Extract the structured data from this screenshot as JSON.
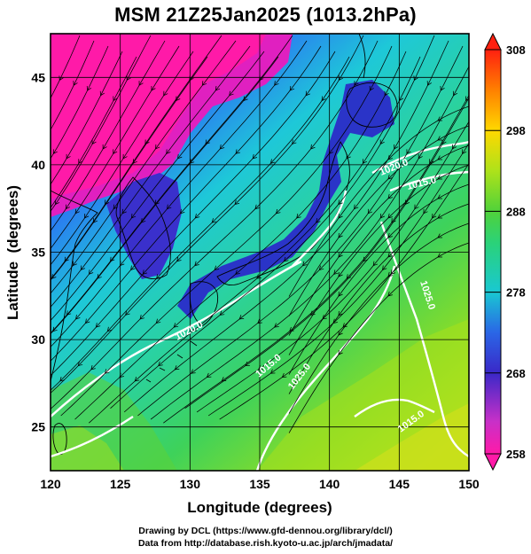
{
  "title": "MSM 21Z25Jan2025 (1013.2hPa)",
  "xlabel": "Longitude (degrees)",
  "ylabel": "Latitude  (degrees)",
  "x_ticks": [
    "120",
    "125",
    "130",
    "135",
    "140",
    "145",
    "150"
  ],
  "y_ticks": [
    "25",
    "30",
    "35",
    "40",
    "45"
  ],
  "colorbar_ticks": [
    "258",
    "268",
    "278",
    "288",
    "298",
    "308"
  ],
  "contour_labels": [
    "1020.0",
    "1015.0",
    "1025.0",
    "1020.0",
    "1015.0",
    "1025.0",
    "1015.0"
  ],
  "credit_line1": "Drawing by DCL (https://www.gfd-dennou.org/library/dcl/)",
  "credit_line2": "Data from http://database.rish.kyoto-u.ac.jp/arch/jmadata/",
  "map": {
    "lon_range": [
      120,
      150
    ],
    "lat_range": [
      22.5,
      47.5
    ],
    "grid": true,
    "contour_color": "#ffffff",
    "streamline_color": "#000000"
  },
  "colorbar": {
    "range": [
      258,
      308
    ],
    "colors": [
      "#ff1aa8",
      "#c830c8",
      "#3a28c8",
      "#2a66e6",
      "#19c8d2",
      "#2ad27a",
      "#50d23a",
      "#aee21a",
      "#ffd800",
      "#ff8000",
      "#ff2010"
    ]
  }
}
